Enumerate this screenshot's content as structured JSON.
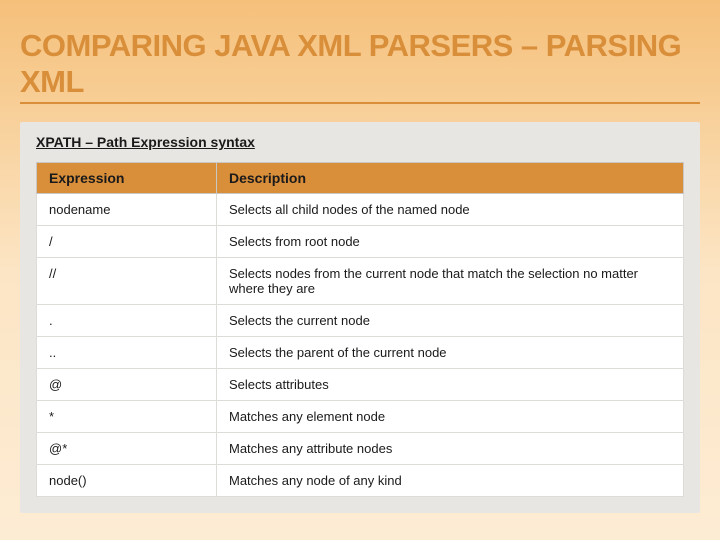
{
  "title": "COMPARING JAVA XML PARSERS – PARSING XML",
  "subtitle": "XPATH – Path Expression syntax",
  "table": {
    "columns": [
      "Expression",
      "Description"
    ],
    "rows": [
      [
        "nodename",
        "Selects all child nodes of the named node"
      ],
      [
        "/",
        "Selects from root node"
      ],
      [
        "//",
        "Selects nodes from the current node that match the selection no matter where they are"
      ],
      [
        ".",
        "Selects the current node"
      ],
      [
        "..",
        "Selects the parent of the current node"
      ],
      [
        "@",
        "Selects attributes"
      ],
      [
        "*",
        "Matches any element node"
      ],
      [
        "@*",
        "Matches any attribute nodes"
      ],
      [
        "node()",
        "Matches any node of any kind"
      ]
    ],
    "header_bg": "#d98e3a",
    "header_fontsize": 14,
    "cell_fontsize": 13,
    "border_color": "#dedcd8",
    "expr_col_width": 180
  },
  "colors": {
    "title_color": "#d98e3a",
    "bg_top": "#f5c07a",
    "bg_bottom": "#fdecd4",
    "content_bg": "#e8e6e2",
    "cell_bg": "#ffffff"
  },
  "title_fontsize": 31,
  "subtitle_fontsize": 14
}
